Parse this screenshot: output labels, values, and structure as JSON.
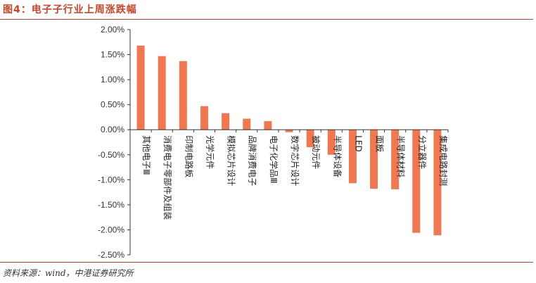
{
  "header": {
    "title": "图4：电子子行业上周涨跌幅"
  },
  "footer": {
    "source": "资料来源：wind，中港证券研究所"
  },
  "chart_data": {
    "type": "bar",
    "title": "",
    "xlabel": "",
    "ylabel": "",
    "ylim": [
      -0.025,
      0.02
    ],
    "yticks": [
      0.02,
      0.015,
      0.01,
      0.005,
      0.0,
      -0.005,
      -0.01,
      -0.015,
      -0.02,
      -0.025
    ],
    "ytick_labels": [
      "2.00%",
      "1.50%",
      "1.00%",
      "0.50%",
      "0.00%",
      "-0.50%",
      "-1.00%",
      "-1.50%",
      "-2.00%",
      "-2.50%"
    ],
    "grid": false,
    "legend": "none",
    "bar_color": "#f07850",
    "categories": [
      "其他电子Ⅲ",
      "消费电子零部件及组装",
      "印制电路板",
      "光学元件",
      "模拟芯片设计",
      "品牌消费电子",
      "电子化学品Ⅲ",
      "数字芯片设计",
      "被动元件",
      "半导体设备",
      "LED",
      "面板",
      "半导体材料",
      "分立器件",
      "集成电路封测"
    ],
    "values": [
      0.0168,
      0.0147,
      0.0137,
      0.0047,
      0.0033,
      0.0022,
      0.0017,
      -0.0005,
      -0.0035,
      -0.005,
      -0.0107,
      -0.0118,
      -0.0119,
      -0.0206,
      -0.0211
    ]
  }
}
